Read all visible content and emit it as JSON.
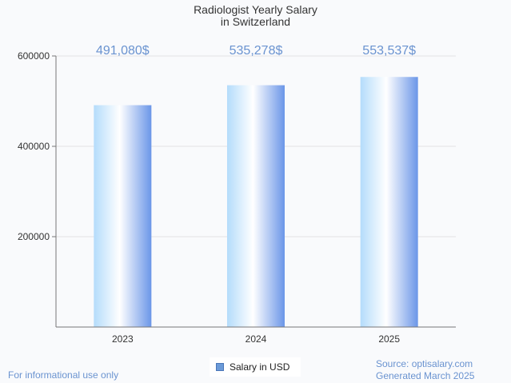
{
  "chart_data": {
    "type": "bar",
    "title": [
      "Radiologist Yearly Salary",
      "in Switzerland"
    ],
    "categories": [
      "2023",
      "2024",
      "2025"
    ],
    "series": [
      {
        "name": "Salary in USD",
        "values": [
          491080,
          535278,
          553537
        ]
      }
    ],
    "data_labels": [
      "491,080$",
      "535,278$",
      "553,537$"
    ],
    "y_ticks": [
      200000,
      400000,
      600000
    ],
    "ylim": [
      0,
      600000
    ],
    "grid": true,
    "legend_position": "bottom-center"
  },
  "footer": {
    "disclaimer": "For informational use only",
    "source": "Source: optisalary.com",
    "generated": "Generated March 2025"
  },
  "colors": {
    "bar_light": "#ffffff",
    "bar_mid": "#b4dcfb",
    "bar_dark": "#6b96e8",
    "label": "#6a93d0",
    "grid": "#e3e3e3",
    "axis": "#777777"
  }
}
